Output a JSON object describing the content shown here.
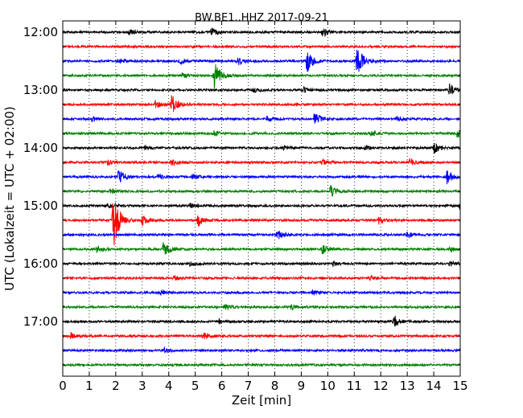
{
  "chart_data": {
    "type": "line",
    "title": "BW.BE1..HHZ 2017-09-21",
    "xlabel": "Zeit  [min]",
    "ylabel": "UTC (Lokalzeit = UTC + 02:00)",
    "xlim": [
      0,
      15
    ],
    "x_ticks": [
      0,
      1,
      2,
      3,
      4,
      5,
      6,
      7,
      8,
      9,
      10,
      11,
      12,
      13,
      14,
      15
    ],
    "x_tick_labels": [
      "0",
      "1",
      "2",
      "3",
      "4",
      "5",
      "6",
      "7",
      "8",
      "9",
      "10",
      "11",
      "12",
      "13",
      "14",
      "15"
    ],
    "y_tick_labels": [
      "12:00",
      "13:00",
      "14:00",
      "15:00",
      "16:00",
      "17:00"
    ],
    "grid": true,
    "trace_colors": [
      "#000000",
      "#ff0000",
      "#0000ff",
      "#008000"
    ],
    "traces": [
      {
        "start": "12:00",
        "events": [
          {
            "t": 2.5,
            "amp": 4
          },
          {
            "t": 5.6,
            "amp": 5
          },
          {
            "t": 9.8,
            "amp": 6
          }
        ]
      },
      {
        "start": "12:15",
        "events": []
      },
      {
        "start": "12:30",
        "events": [
          {
            "t": 2.1,
            "amp": 4
          },
          {
            "t": 4.4,
            "amp": 4
          },
          {
            "t": 6.6,
            "amp": 5
          },
          {
            "t": 9.2,
            "amp": 16
          },
          {
            "t": 11.1,
            "amp": 22
          }
        ]
      },
      {
        "start": "12:45",
        "events": [
          {
            "t": 4.5,
            "amp": 3
          },
          {
            "t": 5.7,
            "amp": 20
          }
        ]
      },
      {
        "start": "13:00",
        "events": [
          {
            "t": 7.2,
            "amp": 3
          },
          {
            "t": 9.1,
            "amp": 3
          },
          {
            "t": 14.6,
            "amp": 8
          }
        ]
      },
      {
        "start": "13:15",
        "events": [
          {
            "t": 3.5,
            "amp": 5
          },
          {
            "t": 4.1,
            "amp": 14
          }
        ]
      },
      {
        "start": "13:30",
        "events": [
          {
            "t": 1.1,
            "amp": 3
          },
          {
            "t": 7.7,
            "amp": 3
          },
          {
            "t": 9.5,
            "amp": 8
          },
          {
            "t": 12.6,
            "amp": 3
          }
        ]
      },
      {
        "start": "13:45",
        "events": [
          {
            "t": 5.7,
            "amp": 3
          },
          {
            "t": 11.6,
            "amp": 3
          },
          {
            "t": 14.9,
            "amp": 8
          }
        ]
      },
      {
        "start": "14:00",
        "events": [
          {
            "t": 3.1,
            "amp": 3
          },
          {
            "t": 8.3,
            "amp": 3
          },
          {
            "t": 11.4,
            "amp": 3
          },
          {
            "t": 14.0,
            "amp": 7
          }
        ]
      },
      {
        "start": "14:15",
        "events": [
          {
            "t": 1.7,
            "amp": 3
          },
          {
            "t": 4.1,
            "amp": 5
          },
          {
            "t": 9.8,
            "amp": 3
          },
          {
            "t": 13.1,
            "amp": 4
          }
        ]
      },
      {
        "start": "14:30",
        "events": [
          {
            "t": 2.1,
            "amp": 10
          },
          {
            "t": 3.6,
            "amp": 3
          },
          {
            "t": 4.9,
            "amp": 4
          },
          {
            "t": 14.5,
            "amp": 8
          }
        ]
      },
      {
        "start": "14:45",
        "events": [
          {
            "t": 1.8,
            "amp": 3
          },
          {
            "t": 10.1,
            "amp": 8
          }
        ]
      },
      {
        "start": "15:00",
        "events": [
          {
            "t": 1.7,
            "amp": 3
          },
          {
            "t": 4.8,
            "amp": 3
          },
          {
            "t": 15.0,
            "amp": 6
          }
        ]
      },
      {
        "start": "15:15",
        "events": [
          {
            "t": 1.9,
            "amp": 45
          },
          {
            "t": 3.0,
            "amp": 6
          },
          {
            "t": 5.1,
            "amp": 8
          },
          {
            "t": 11.9,
            "amp": 5
          }
        ]
      },
      {
        "start": "15:30",
        "events": [
          {
            "t": 8.1,
            "amp": 7
          },
          {
            "t": 13.0,
            "amp": 3
          }
        ]
      },
      {
        "start": "15:45",
        "events": [
          {
            "t": 1.3,
            "amp": 5
          },
          {
            "t": 3.8,
            "amp": 10
          },
          {
            "t": 9.8,
            "amp": 6
          },
          {
            "t": 14.6,
            "amp": 3
          }
        ]
      },
      {
        "start": "16:00",
        "events": [
          {
            "t": 4.8,
            "amp": 3
          },
          {
            "t": 10.2,
            "amp": 3
          },
          {
            "t": 14.6,
            "amp": 3
          }
        ]
      },
      {
        "start": "16:15",
        "events": [
          {
            "t": 4.2,
            "amp": 3
          },
          {
            "t": 11.6,
            "amp": 3
          }
        ]
      },
      {
        "start": "16:30",
        "events": [
          {
            "t": 3.7,
            "amp": 3
          },
          {
            "t": 9.4,
            "amp": 4
          }
        ]
      },
      {
        "start": "16:45",
        "events": [
          {
            "t": 6.1,
            "amp": 4
          },
          {
            "t": 8.6,
            "amp": 3
          }
        ]
      },
      {
        "start": "17:00",
        "events": [
          {
            "t": 5.9,
            "amp": 3
          },
          {
            "t": 12.5,
            "amp": 8
          }
        ]
      },
      {
        "start": "17:15",
        "events": [
          {
            "t": 0.3,
            "amp": 4
          },
          {
            "t": 5.3,
            "amp": 4
          }
        ]
      },
      {
        "start": "17:30",
        "events": [
          {
            "t": 3.8,
            "amp": 3
          }
        ]
      },
      {
        "start": "17:45",
        "events": []
      }
    ]
  }
}
